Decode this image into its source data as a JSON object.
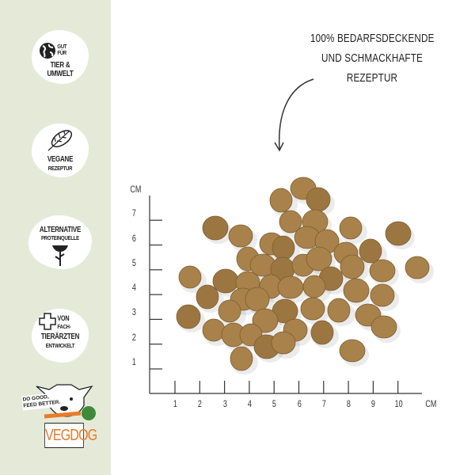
{
  "headline": {
    "lines": [
      "100% BEDARFSDECKENDE",
      "UND SCHMACKHAFTE",
      "REZEPTUR"
    ]
  },
  "badges": [
    {
      "icon": "globe-icon",
      "top": "GUT",
      "top2": "FÜR",
      "line1": "TIER &",
      "line2": "UMWELT"
    },
    {
      "icon": "leaf-icon",
      "line1": "VEGANE",
      "line2": "REZEPTUR"
    },
    {
      "icon": "sunflower-icon",
      "line1": "ALTERNATIVE",
      "line2": "PROTEINQUELLE"
    },
    {
      "icon": "plus-cross-icon",
      "top": "VON",
      "top2": "FACH-",
      "line1": "TIERÄRZTEN",
      "line2": "ENTWICKELT"
    }
  ],
  "logo": {
    "brand": "VEGDOG",
    "slogan_line1": "DO GOOD,",
    "slogan_line2": "FEED BETTER."
  },
  "scale": {
    "y_unit": "CM",
    "x_unit": "CM",
    "y_ticks": [
      "1",
      "2",
      "3",
      "4",
      "5",
      "6",
      "7"
    ],
    "x_ticks": [
      "1",
      "2",
      "3",
      "4",
      "5",
      "6",
      "7",
      "8",
      "9",
      "10"
    ]
  },
  "colors": {
    "sidebar": "#e5ead8",
    "kibble": "#a8824a",
    "ink": "#222222"
  }
}
